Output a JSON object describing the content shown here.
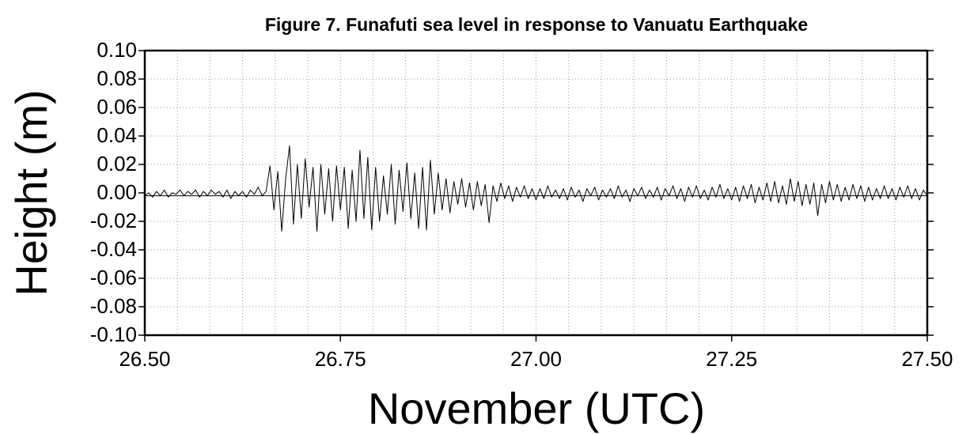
{
  "chart_data": {
    "type": "line",
    "title": "Figure 7. Funafuti sea level in response to Vanuatu Earthquake",
    "x_label": "November (UTC)",
    "y_label": "Height (m)",
    "xlim": [
      26.5,
      27.5
    ],
    "ylim": [
      -0.1,
      0.1
    ],
    "xticks": [
      {
        "value": 26.5,
        "label": "26.50"
      },
      {
        "value": 26.75,
        "label": "26.75"
      },
      {
        "value": 27.0,
        "label": "27.00"
      },
      {
        "value": 27.25,
        "label": "27.25"
      },
      {
        "value": 27.5,
        "label": "27.50"
      }
    ],
    "yticks": [
      {
        "value": -0.1,
        "label": "-0.10"
      },
      {
        "value": -0.08,
        "label": "-0.08"
      },
      {
        "value": -0.06,
        "label": "-0.06"
      },
      {
        "value": -0.04,
        "label": "-0.04"
      },
      {
        "value": -0.02,
        "label": "-0.02"
      },
      {
        "value": 0,
        "label": "0.00"
      },
      {
        "value": 0.02,
        "label": "0.02"
      },
      {
        "value": 0.04,
        "label": "0.04"
      },
      {
        "value": 0.06,
        "label": "0.06"
      },
      {
        "value": 0.08,
        "label": "0.08"
      },
      {
        "value": 0.1,
        "label": "0.10"
      }
    ],
    "x_minor_ticks": [
      26.5417,
      26.5833,
      26.625,
      26.6667,
      26.7083,
      26.7917,
      26.8333,
      26.875,
      26.9167,
      26.9583,
      27.0417,
      27.0833,
      27.125,
      27.1667,
      27.2083,
      27.2917,
      27.3333,
      27.375,
      27.4167,
      27.4583
    ],
    "grid": true,
    "reference_line": -0.002,
    "series": [
      {
        "color": "#000000",
        "x": [
          26.5,
          26.505,
          26.51,
          26.515,
          26.52,
          26.525,
          26.53,
          26.535,
          26.54,
          26.545,
          26.55,
          26.555,
          26.56,
          26.565,
          26.57,
          26.575,
          26.58,
          26.585,
          26.59,
          26.595,
          26.6,
          26.605,
          26.61,
          26.615,
          26.62,
          26.625,
          26.63,
          26.635,
          26.64,
          26.645,
          26.65,
          26.655,
          26.66,
          26.665,
          26.67,
          26.675,
          26.68,
          26.685,
          26.69,
          26.695,
          26.7,
          26.705,
          26.71,
          26.715,
          26.72,
          26.725,
          26.73,
          26.735,
          26.74,
          26.745,
          26.75,
          26.755,
          26.76,
          26.765,
          26.77,
          26.775,
          26.78,
          26.785,
          26.79,
          26.795,
          26.8,
          26.805,
          26.81,
          26.815,
          26.82,
          26.825,
          26.83,
          26.835,
          26.84,
          26.845,
          26.85,
          26.855,
          26.86,
          26.865,
          26.87,
          26.875,
          26.88,
          26.885,
          26.89,
          26.895,
          26.9,
          26.905,
          26.91,
          26.915,
          26.92,
          26.925,
          26.93,
          26.935,
          26.94,
          26.945,
          26.95,
          26.955,
          26.96,
          26.965,
          26.97,
          26.975,
          26.98,
          26.985,
          26.99,
          26.995,
          27.0,
          27.005,
          27.01,
          27.015,
          27.02,
          27.025,
          27.03,
          27.035,
          27.04,
          27.045,
          27.05,
          27.055,
          27.06,
          27.065,
          27.07,
          27.075,
          27.08,
          27.085,
          27.09,
          27.095,
          27.1,
          27.105,
          27.11,
          27.115,
          27.12,
          27.125,
          27.13,
          27.135,
          27.14,
          27.145,
          27.15,
          27.155,
          27.16,
          27.165,
          27.17,
          27.175,
          27.18,
          27.185,
          27.19,
          27.195,
          27.2,
          27.205,
          27.21,
          27.215,
          27.22,
          27.225,
          27.23,
          27.235,
          27.24,
          27.245,
          27.25,
          27.255,
          27.26,
          27.265,
          27.27,
          27.275,
          27.28,
          27.285,
          27.29,
          27.295,
          27.3,
          27.305,
          27.31,
          27.315,
          27.32,
          27.325,
          27.33,
          27.335,
          27.34,
          27.345,
          27.35,
          27.355,
          27.36,
          27.365,
          27.37,
          27.375,
          27.38,
          27.385,
          27.39,
          27.395,
          27.4,
          27.405,
          27.41,
          27.415,
          27.42,
          27.425,
          27.43,
          27.435,
          27.44,
          27.445,
          27.45,
          27.455,
          27.46,
          27.465,
          27.47,
          27.475,
          27.48,
          27.485,
          27.49,
          27.495,
          27.5
        ],
        "values": [
          -0.002,
          0.0,
          -0.003,
          0.001,
          -0.002,
          0.002,
          -0.003,
          0.0,
          -0.001,
          0.002,
          -0.002,
          0.001,
          -0.001,
          0.002,
          -0.003,
          0.001,
          -0.002,
          0.002,
          -0.001,
          0.001,
          -0.003,
          0.002,
          -0.004,
          0.001,
          -0.002,
          0.001,
          -0.003,
          0.002,
          -0.001,
          0.004,
          -0.002,
          0.001,
          0.019,
          -0.012,
          0.015,
          -0.027,
          0.01,
          0.033,
          -0.022,
          0.02,
          -0.018,
          0.024,
          -0.01,
          0.018,
          -0.027,
          0.02,
          -0.015,
          0.017,
          -0.02,
          0.019,
          -0.012,
          0.018,
          -0.025,
          0.016,
          -0.02,
          0.03,
          -0.018,
          0.025,
          -0.026,
          0.018,
          -0.02,
          0.012,
          -0.015,
          0.02,
          -0.022,
          0.016,
          -0.013,
          0.021,
          -0.018,
          0.014,
          -0.025,
          0.018,
          -0.026,
          0.023,
          -0.015,
          0.014,
          -0.012,
          0.01,
          -0.014,
          0.008,
          -0.008,
          0.01,
          -0.01,
          0.007,
          -0.012,
          0.008,
          -0.009,
          0.006,
          -0.021,
          0.005,
          -0.006,
          0.007,
          -0.004,
          0.005,
          -0.006,
          0.004,
          -0.003,
          0.005,
          -0.004,
          0.003,
          -0.005,
          0.003,
          -0.004,
          0.005,
          -0.003,
          0.002,
          -0.004,
          0.003,
          -0.005,
          0.004,
          -0.003,
          0.002,
          -0.006,
          0.003,
          -0.002,
          0.004,
          -0.005,
          0.002,
          -0.003,
          0.003,
          -0.004,
          0.005,
          -0.003,
          0.002,
          -0.006,
          0.003,
          -0.002,
          0.004,
          -0.004,
          0.002,
          -0.003,
          0.004,
          -0.005,
          0.003,
          -0.002,
          0.005,
          -0.004,
          0.003,
          -0.006,
          0.004,
          -0.003,
          0.005,
          -0.004,
          0.002,
          -0.005,
          0.004,
          -0.003,
          0.006,
          -0.004,
          0.003,
          -0.005,
          0.004,
          -0.006,
          0.005,
          -0.004,
          0.006,
          -0.007,
          0.004,
          -0.005,
          0.007,
          -0.006,
          0.008,
          -0.007,
          0.005,
          -0.008,
          0.01,
          -0.006,
          0.008,
          -0.009,
          0.006,
          -0.008,
          0.007,
          -0.016,
          0.006,
          -0.007,
          0.008,
          -0.005,
          0.006,
          -0.006,
          0.004,
          -0.005,
          0.006,
          -0.004,
          0.005,
          -0.006,
          0.004,
          -0.005,
          0.003,
          -0.004,
          0.005,
          -0.004,
          0.003,
          -0.005,
          0.004,
          -0.003,
          0.005,
          -0.004,
          0.003,
          -0.005,
          0.002,
          -0.002
        ]
      }
    ]
  }
}
